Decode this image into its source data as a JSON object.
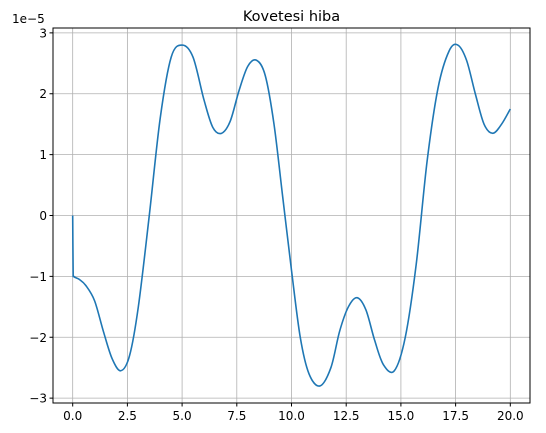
{
  "chart_data": {
    "type": "line",
    "title": "Kovetesi hiba",
    "xlabel": "",
    "ylabel": "",
    "offset_text": "1e−5",
    "xlim": [
      -0.9,
      20.9
    ],
    "ylim": [
      -3.08,
      3.08
    ],
    "grid": true,
    "x_ticks": [
      0,
      2.5,
      5,
      7.5,
      10,
      12.5,
      15,
      17.5,
      20
    ],
    "x_tick_labels": [
      "0.0",
      "2.5",
      "5.0",
      "7.5",
      "10.0",
      "12.5",
      "15.0",
      "17.5",
      "20.0"
    ],
    "y_ticks": [
      -3,
      -2,
      -1,
      0,
      1,
      2,
      3
    ],
    "y_tick_labels": [
      "−3",
      "−2",
      "−1",
      "0",
      "1",
      "2",
      "3"
    ],
    "series": [
      {
        "color": "#1f77b4",
        "x": [
          0,
          0.02,
          0.05,
          0.3,
          0.6,
          1.0,
          1.4,
          1.8,
          2.2,
          2.6,
          3.0,
          3.5,
          4.0,
          4.5,
          5.0,
          5.5,
          6.0,
          6.4,
          6.8,
          7.2,
          7.6,
          8.0,
          8.4,
          8.8,
          9.2,
          9.6,
          10.0,
          10.4,
          10.8,
          11.3,
          11.8,
          12.2,
          12.6,
          13.0,
          13.4,
          13.8,
          14.2,
          14.7,
          15.2,
          15.7,
          16.2,
          16.7,
          17.2,
          17.6,
          18.0,
          18.4,
          18.8,
          19.2,
          19.6,
          20.0
        ],
        "y": [
          0,
          -0.9,
          -1.0,
          -1.05,
          -1.15,
          -1.4,
          -1.9,
          -2.35,
          -2.55,
          -2.3,
          -1.5,
          0.0,
          1.6,
          2.6,
          2.8,
          2.6,
          1.9,
          1.45,
          1.35,
          1.55,
          2.05,
          2.45,
          2.55,
          2.3,
          1.5,
          0.3,
          -0.9,
          -2.0,
          -2.6,
          -2.8,
          -2.5,
          -1.9,
          -1.5,
          -1.35,
          -1.55,
          -2.05,
          -2.45,
          -2.55,
          -2.0,
          -0.8,
          0.9,
          2.1,
          2.7,
          2.8,
          2.55,
          2.0,
          1.5,
          1.35,
          1.5,
          1.75
        ]
      }
    ]
  }
}
